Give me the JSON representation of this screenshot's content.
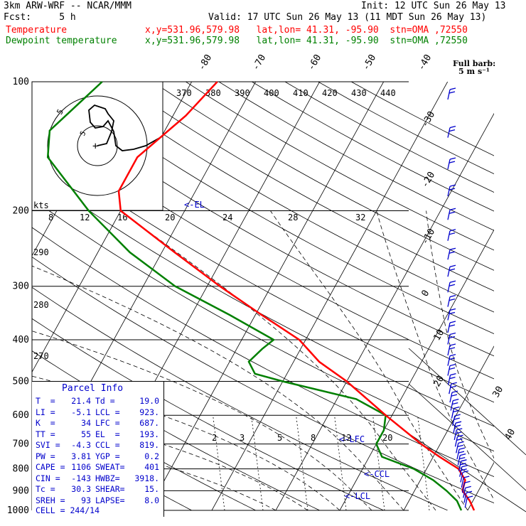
{
  "header": {
    "line1_left": "3km ARW-WRF -- NCAR/MMM",
    "line1_right": "Init: 12 UTC Sun 26 May 13",
    "line2_left": "Fcst:     5 h",
    "line2_right": "Valid: 17 UTC Sun 26 May 13 (11 MDT Sun 26 May 13)",
    "line3_label": "Temperature",
    "line3_info": "x,y=531.96,579.98   lat,lon= 41.31, -95.90  stn=OMA ,72550",
    "line4_label": "Dewpoint temperature",
    "line4_info": "x,y=531.96,579.98   lat,lon= 41.31, -95.90  stn=OMA ,72550"
  },
  "colors": {
    "temperature": "#ff0000",
    "dewpoint": "#008000",
    "parcel": "#0000cc",
    "grid": "#000000"
  },
  "parcel_info": {
    "title": "Parcel Info",
    "rows": [
      [
        "T  =",
        "21.4",
        "Td =",
        "19.0"
      ],
      [
        "LI =",
        "-5.1",
        "LCL =",
        "923."
      ],
      [
        "K  =",
        "34",
        "LFC =",
        "687."
      ],
      [
        "TT =",
        "55",
        "EL  =",
        "193."
      ],
      [
        "SVI =",
        "-4.3",
        "CCL =",
        "819."
      ],
      [
        "PW =",
        "3.81",
        "YGP =",
        "0.2"
      ],
      [
        "CAPE =",
        "1106",
        "SWEAT=",
        "401"
      ],
      [
        "CIN =",
        "-143",
        "HWBZ=",
        "3918."
      ],
      [
        "Tc =",
        "30.3",
        "SHEAR=",
        "15."
      ],
      [
        "SREH =",
        "93",
        "LAPSE=",
        "8.0"
      ]
    ],
    "cell": "CELL = 244/14"
  },
  "chart_data": {
    "type": "skew-t",
    "pressure_ticks": [
      100,
      200,
      300,
      400,
      500,
      600,
      700,
      800,
      900,
      1000
    ],
    "temperature_ticks_top": [
      -80,
      -70,
      -60,
      -50,
      -40
    ],
    "temperature_ticks_right": [
      -30,
      -20,
      -10,
      0,
      10,
      20,
      30,
      40
    ],
    "theta_labels": [
      370,
      380,
      390,
      400,
      410,
      420,
      430,
      440
    ],
    "hodo_speed_labels": [
      "kts",
      "8",
      "12",
      "16",
      "20",
      "24",
      "28",
      "32"
    ],
    "theta_side_labels": [
      "290",
      "280",
      "270"
    ],
    "mixing_ratio_labels": [
      "2",
      "3",
      "5",
      "8",
      "12",
      "20"
    ],
    "level_markers": [
      "EL",
      "LFC",
      "CCL",
      "LCL"
    ],
    "series": [
      {
        "name": "Temperature",
        "points": [
          [
            100,
            -56
          ],
          [
            120,
            -58
          ],
          [
            150,
            -62
          ],
          [
            180,
            -62
          ],
          [
            200,
            -60
          ],
          [
            250,
            -48
          ],
          [
            300,
            -38
          ],
          [
            350,
            -29
          ],
          [
            400,
            -21
          ],
          [
            450,
            -16
          ],
          [
            500,
            -10
          ],
          [
            600,
            -1
          ],
          [
            700,
            7
          ],
          [
            750,
            11
          ],
          [
            800,
            15
          ],
          [
            850,
            17
          ],
          [
            900,
            17.5
          ],
          [
            950,
            19.5
          ],
          [
            1000,
            21
          ]
        ]
      },
      {
        "name": "Dewpoint temperature",
        "points": [
          [
            100,
            -74
          ],
          [
            130,
            -78
          ],
          [
            150,
            -76
          ],
          [
            200,
            -65
          ],
          [
            250,
            -55
          ],
          [
            300,
            -45
          ],
          [
            350,
            -34
          ],
          [
            400,
            -25
          ],
          [
            420,
            -26
          ],
          [
            450,
            -27
          ],
          [
            480,
            -25
          ],
          [
            500,
            -20
          ],
          [
            550,
            -7
          ],
          [
            600,
            -1
          ],
          [
            650,
            0
          ],
          [
            700,
            0
          ],
          [
            750,
            2
          ],
          [
            800,
            8
          ],
          [
            850,
            12
          ],
          [
            900,
            15
          ],
          [
            950,
            17.5
          ],
          [
            1000,
            19
          ]
        ]
      }
    ],
    "wind_barb_label": "Full barb:",
    "wind_barb_units": "5 m s⁻¹"
  }
}
